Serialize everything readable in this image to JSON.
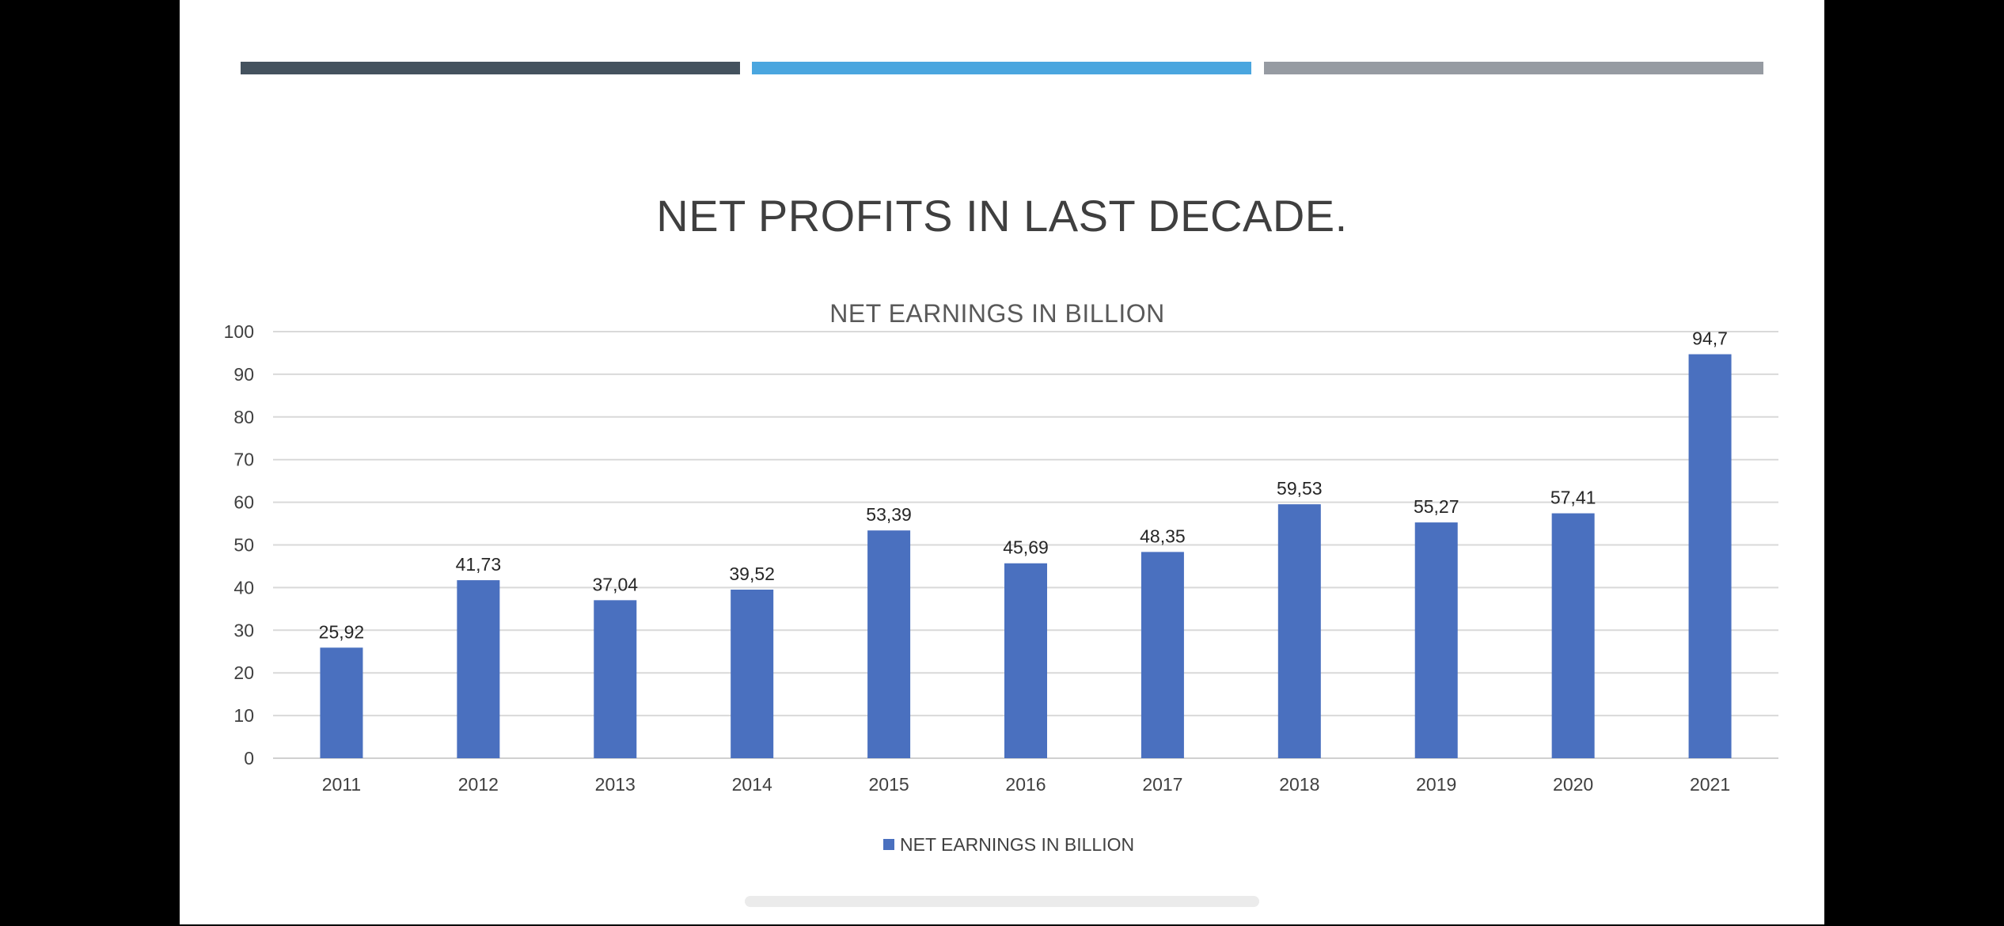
{
  "slide": {
    "title": "NET PROFITS IN LAST DECADE.",
    "accent_strips": [
      "#44525e",
      "#4aa6df",
      "#969ba2"
    ]
  },
  "chart_data": {
    "type": "bar",
    "title": "NET EARNINGS IN BILLION",
    "xlabel": "",
    "ylabel": "",
    "categories": [
      "2011",
      "2012",
      "2013",
      "2014",
      "2015",
      "2016",
      "2017",
      "2018",
      "2019",
      "2020",
      "2021"
    ],
    "series": [
      {
        "name": "NET EARNINGS IN BILLION",
        "values": [
          25.92,
          41.73,
          37.04,
          39.52,
          53.39,
          45.69,
          48.35,
          59.53,
          55.27,
          57.41,
          94.7
        ],
        "labels": [
          "25,92",
          "41,73",
          "37,04",
          "39,52",
          "53,39",
          "45,69",
          "48,35",
          "59,53",
          "55,27",
          "57,41",
          "94,7"
        ],
        "color": "#4a70bf"
      }
    ],
    "ylim": [
      0,
      100
    ],
    "yticks": [
      "0",
      "10",
      "20",
      "30",
      "40",
      "50",
      "60",
      "70",
      "80",
      "90",
      "100"
    ],
    "grid": true,
    "legend": "bottom"
  }
}
